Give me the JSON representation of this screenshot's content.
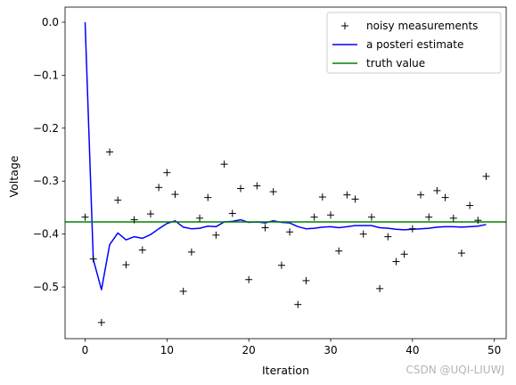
{
  "chart_data": {
    "type": "line",
    "xlabel": "Iteration",
    "ylabel": "Voltage",
    "xlim": [
      -2.45,
      51.45
    ],
    "ylim": [
      -0.5975,
      0.0285
    ],
    "xticks": [
      0,
      10,
      20,
      30,
      40,
      50
    ],
    "yticks": [
      0.0,
      -0.1,
      -0.2,
      -0.3,
      -0.4,
      -0.5
    ],
    "ytick_labels": [
      "0.0",
      "−0.1",
      "−0.2",
      "−0.3",
      "−0.4",
      "−0.5"
    ],
    "grid": false,
    "legend_position": "top-right",
    "series": [
      {
        "name": "noisy measurements",
        "style": "markers",
        "marker": "+",
        "color": "#000000",
        "x": [
          0,
          1,
          2,
          3,
          4,
          5,
          6,
          7,
          8,
          9,
          10,
          11,
          12,
          13,
          14,
          15,
          16,
          17,
          18,
          19,
          20,
          21,
          22,
          23,
          24,
          25,
          26,
          27,
          28,
          29,
          30,
          31,
          32,
          33,
          34,
          35,
          36,
          37,
          38,
          39,
          40,
          41,
          42,
          43,
          44,
          45,
          46,
          47,
          48,
          49
        ],
        "y": [
          -0.368,
          -0.447,
          -0.567,
          -0.245,
          -0.336,
          -0.458,
          -0.373,
          -0.43,
          -0.362,
          -0.312,
          -0.284,
          -0.325,
          -0.508,
          -0.434,
          -0.37,
          -0.331,
          -0.402,
          -0.268,
          -0.361,
          -0.314,
          -0.486,
          -0.309,
          -0.388,
          -0.32,
          -0.459,
          -0.396,
          -0.533,
          -0.488,
          -0.368,
          -0.33,
          -0.364,
          -0.432,
          -0.326,
          -0.334,
          -0.4,
          -0.368,
          -0.503,
          -0.405,
          -0.452,
          -0.438,
          -0.39,
          -0.326,
          -0.368,
          -0.318,
          -0.331,
          -0.37,
          -0.436,
          -0.346,
          -0.374,
          -0.291
        ]
      },
      {
        "name": "a posteri estimate",
        "style": "line",
        "color": "#0000ff",
        "x": [
          0,
          1,
          2,
          3,
          4,
          5,
          6,
          7,
          8,
          9,
          10,
          11,
          12,
          13,
          14,
          15,
          16,
          17,
          18,
          19,
          20,
          21,
          22,
          23,
          24,
          25,
          26,
          27,
          28,
          29,
          30,
          31,
          32,
          33,
          34,
          35,
          36,
          37,
          38,
          39,
          40,
          41,
          42,
          43,
          44,
          45,
          46,
          47,
          48,
          49
        ],
        "y": [
          0.0,
          -0.448,
          -0.505,
          -0.42,
          -0.398,
          -0.411,
          -0.405,
          -0.408,
          -0.401,
          -0.39,
          -0.38,
          -0.375,
          -0.387,
          -0.39,
          -0.389,
          -0.385,
          -0.386,
          -0.377,
          -0.376,
          -0.373,
          -0.378,
          -0.377,
          -0.379,
          -0.375,
          -0.378,
          -0.379,
          -0.386,
          -0.39,
          -0.389,
          -0.387,
          -0.386,
          -0.388,
          -0.386,
          -0.384,
          -0.384,
          -0.384,
          -0.388,
          -0.389,
          -0.391,
          -0.392,
          -0.391,
          -0.39,
          -0.389,
          -0.387,
          -0.386,
          -0.386,
          -0.387,
          -0.386,
          -0.385,
          -0.382
        ]
      },
      {
        "name": "truth value",
        "style": "hline",
        "color": "#008000",
        "y": -0.377
      }
    ]
  },
  "watermark": "CSDN @UQI-LIUWJ"
}
